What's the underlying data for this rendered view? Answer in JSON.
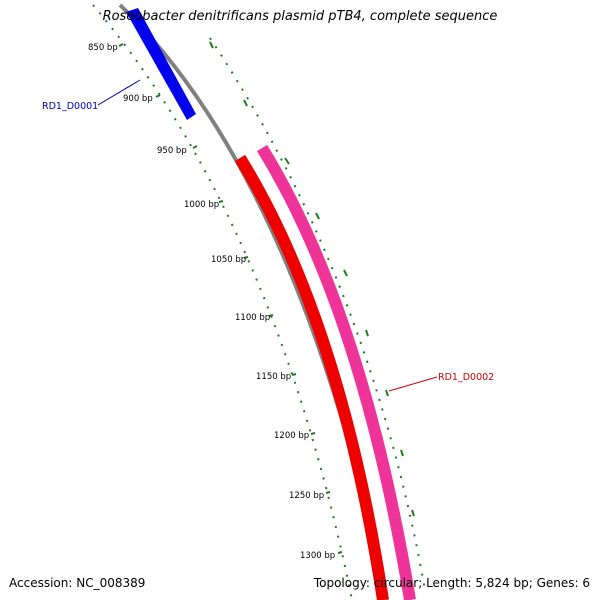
{
  "title": "Roseobacter denitrificans plasmid pTB4, complete sequence",
  "footer": {
    "accession": "Accession: NC_008389",
    "summary": "Topology: circular; Length: 5,824 bp; Genes: 6"
  },
  "colors": {
    "backbone": "#808080",
    "ticks": "#1e7d1e",
    "gene_forward": "#0000ee",
    "gene_reverse_inner": "#ee0000",
    "gene_reverse_outer": "#ee3399"
  },
  "scale": {
    "ticks": [
      {
        "label": "850 bp"
      },
      {
        "label": "900 bp"
      },
      {
        "label": "950 bp"
      },
      {
        "label": "1000 bp"
      },
      {
        "label": "1050 bp"
      },
      {
        "label": "1100 bp"
      },
      {
        "label": "1150 bp"
      },
      {
        "label": "1200 bp"
      },
      {
        "label": "1250 bp"
      },
      {
        "label": "1300 bp"
      }
    ]
  },
  "genes": [
    {
      "name": "RD1_D0001",
      "strand": "forward",
      "color": "#0000ee"
    },
    {
      "name": "RD1_D0002",
      "strand": "reverse",
      "color": "#ee0000"
    }
  ]
}
